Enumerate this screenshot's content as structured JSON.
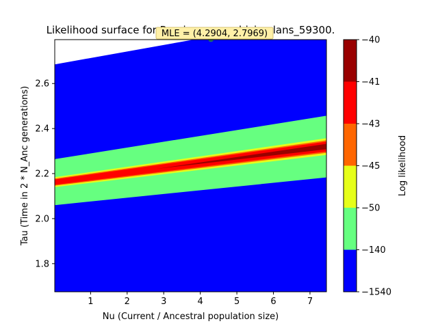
{
  "chart_data": {
    "type": "heatmap",
    "title": "Likelihood surface for Ruminococcus_bicirculans_59300.",
    "xlabel": "Nu (Current / Ancestral population size)",
    "ylabel": "Tau (Time in 2 * N_Anc generations)",
    "xlim": [
      0.02,
      7.45
    ],
    "ylim": [
      1.675,
      2.795
    ],
    "x_ticks": [
      "1",
      "2",
      "3",
      "4",
      "5",
      "6",
      "7"
    ],
    "x_tick_values": [
      1,
      2,
      3,
      4,
      5,
      6,
      7
    ],
    "y_ticks": [
      "1.8",
      "2.0",
      "2.2",
      "2.4",
      "2.6"
    ],
    "y_tick_values": [
      1.8,
      2.0,
      2.2,
      2.4,
      2.6
    ],
    "colorbar": {
      "label": "Log likelihood",
      "levels": [
        -1540,
        -140,
        -50,
        -45,
        -43,
        -41,
        -40
      ],
      "tick_labels": [
        "−1540",
        "−140",
        "−50",
        "−45",
        "−43",
        "−41",
        "−40"
      ],
      "colors": [
        "#0000ff",
        "#66ff80",
        "#e6ff1a",
        "#ff6600",
        "#ff0000",
        "#990000"
      ]
    },
    "ridge": {
      "x": [
        0.02,
        7.45
      ],
      "y": [
        2.162,
        2.32
      ]
    },
    "contour_bands": [
      {
        "level": "-140",
        "color": "#66ff80",
        "half_width": [
          0.102,
          0.137
        ]
      },
      {
        "level": "-50",
        "color": "#e6ff1a",
        "half_width": [
          0.022,
          0.037
        ]
      },
      {
        "level": "-45",
        "color": "#ff6600",
        "half_width": [
          0.016,
          0.028
        ]
      },
      {
        "level": "-43",
        "color": "#ff0000",
        "half_width": [
          0.012,
          0.022
        ]
      }
    ],
    "inner_core": {
      "level": "-41",
      "color": "#990000",
      "x_start": 2.8,
      "half_width": 0.012
    },
    "masked_region": {
      "top_left_y": 2.685,
      "top_right_y": 2.9
    },
    "mle": {
      "x": 4.2904,
      "y": 2.7969,
      "label": "MLE = (4.2904, 2.7969)"
    }
  }
}
